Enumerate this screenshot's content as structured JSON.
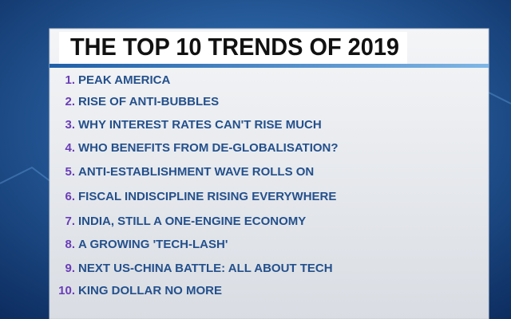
{
  "header": {
    "title": "THE TOP 10 TRENDS OF 2019"
  },
  "items": [
    {
      "number": "1.",
      "text": "PEAK AMERICA"
    },
    {
      "number": "2.",
      "text": "RISE OF ANTI-BUBBLES"
    },
    {
      "number": "3.",
      "text": "WHY INTEREST RATES CAN'T RISE MUCH"
    },
    {
      "number": "4.",
      "text": "WHO BENEFITS FROM DE-GLOBALISATION?"
    },
    {
      "number": "5.",
      "text": "ANTI-ESTABLISHMENT WAVE ROLLS ON"
    },
    {
      "number": "6.",
      "text": "FISCAL INDISCIPLINE RISING EVERYWHERE"
    },
    {
      "number": "7.",
      "text": "INDIA, STILL A ONE-ENGINE ECONOMY"
    },
    {
      "number": "8.",
      "text": "A GROWING 'TECH-LASH'"
    },
    {
      "number": "9.",
      "text": "NEXT US-CHINA BATTLE: ALL ABOUT TECH"
    },
    {
      "number": "10.",
      "text": "KING DOLLAR NO MORE"
    }
  ]
}
